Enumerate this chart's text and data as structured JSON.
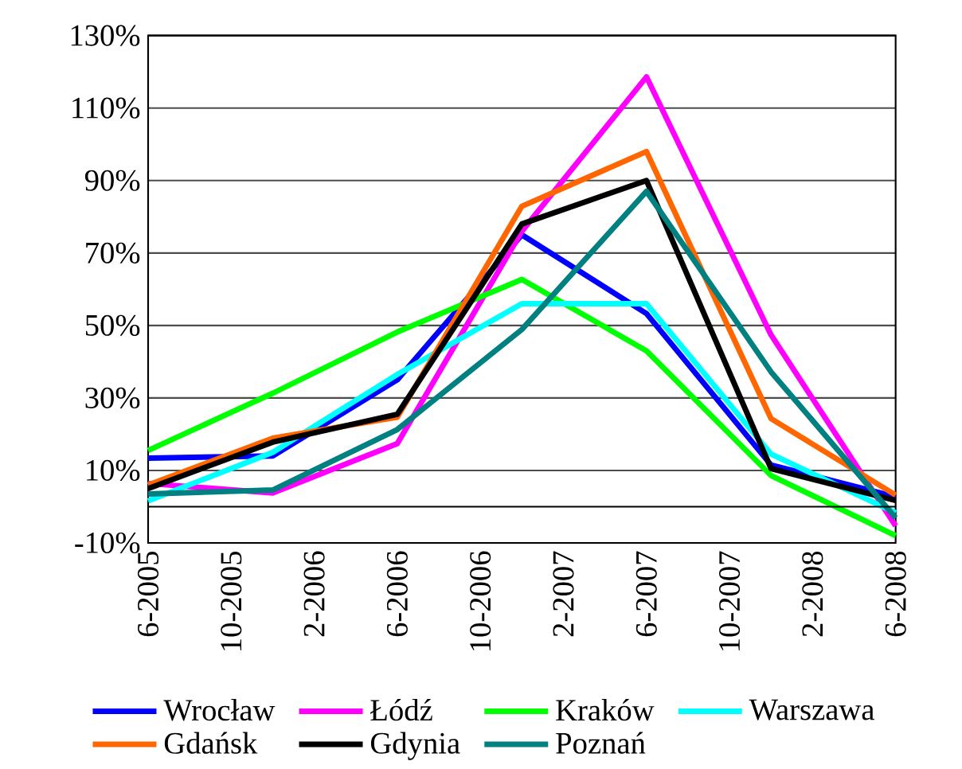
{
  "chart_data": {
    "type": "line",
    "x": [
      "2005-06",
      "2005-12",
      "2006-06",
      "2006-12",
      "2007-06",
      "2007-12",
      "2008-06"
    ],
    "series": [
      {
        "name": "Wrocław",
        "color": "#0000ff",
        "values": [
          13.4,
          14,
          35,
          75,
          53.3,
          11.5,
          2.7
        ]
      },
      {
        "name": "Łódź",
        "color": "#ff00ff",
        "values": [
          6.4,
          3.8,
          17.4,
          76,
          118.6,
          47.4,
          -5.3
        ]
      },
      {
        "name": "Kraków",
        "color": "#00ff00",
        "values": [
          15.5,
          31.3,
          48.2,
          62.7,
          43,
          8.6,
          -8
        ]
      },
      {
        "name": "Warszawa",
        "color": "#00ffff",
        "values": [
          1.6,
          15,
          36.5,
          56,
          56,
          14.5,
          -1.7
        ]
      },
      {
        "name": "Gdańsk",
        "color": "#ff6600",
        "values": [
          6,
          18.9,
          24.7,
          82.9,
          98,
          24.3,
          3.2
        ]
      },
      {
        "name": "Gdynia",
        "color": "#000000",
        "values": [
          5,
          17.8,
          25.5,
          78,
          90,
          10.5,
          1.7
        ]
      },
      {
        "name": "Poznań",
        "color": "#008080",
        "values": [
          3.5,
          4.6,
          21.3,
          48.9,
          87,
          37.2,
          -3.1
        ]
      }
    ],
    "xlim": [
      "2005-06",
      "2008-06"
    ],
    "xticks": [
      {
        "value": "2005-06",
        "label": "6-2005"
      },
      {
        "value": "2005-10",
        "label": "10-2005"
      },
      {
        "value": "2006-02",
        "label": "2-2006"
      },
      {
        "value": "2006-06",
        "label": "6-2006"
      },
      {
        "value": "2006-10",
        "label": "10-2006"
      },
      {
        "value": "2007-02",
        "label": "2-2007"
      },
      {
        "value": "2007-06",
        "label": "6-2007"
      },
      {
        "value": "2007-10",
        "label": "10-2007"
      },
      {
        "value": "2008-02",
        "label": "2-2008"
      },
      {
        "value": "2008-06",
        "label": "6-2008"
      }
    ],
    "ylim": [
      -10,
      130
    ],
    "yticks": [
      {
        "value": -10,
        "label": "-10%"
      },
      {
        "value": 10,
        "label": "10%"
      },
      {
        "value": 30,
        "label": "30%"
      },
      {
        "value": 50,
        "label": "50%"
      },
      {
        "value": 70,
        "label": "70%"
      },
      {
        "value": 90,
        "label": "90%"
      },
      {
        "value": 110,
        "label": "110%"
      },
      {
        "value": 130,
        "label": "130%"
      }
    ],
    "grid": "y",
    "legend": "bottom",
    "marker": "none",
    "line_style": "solid"
  }
}
